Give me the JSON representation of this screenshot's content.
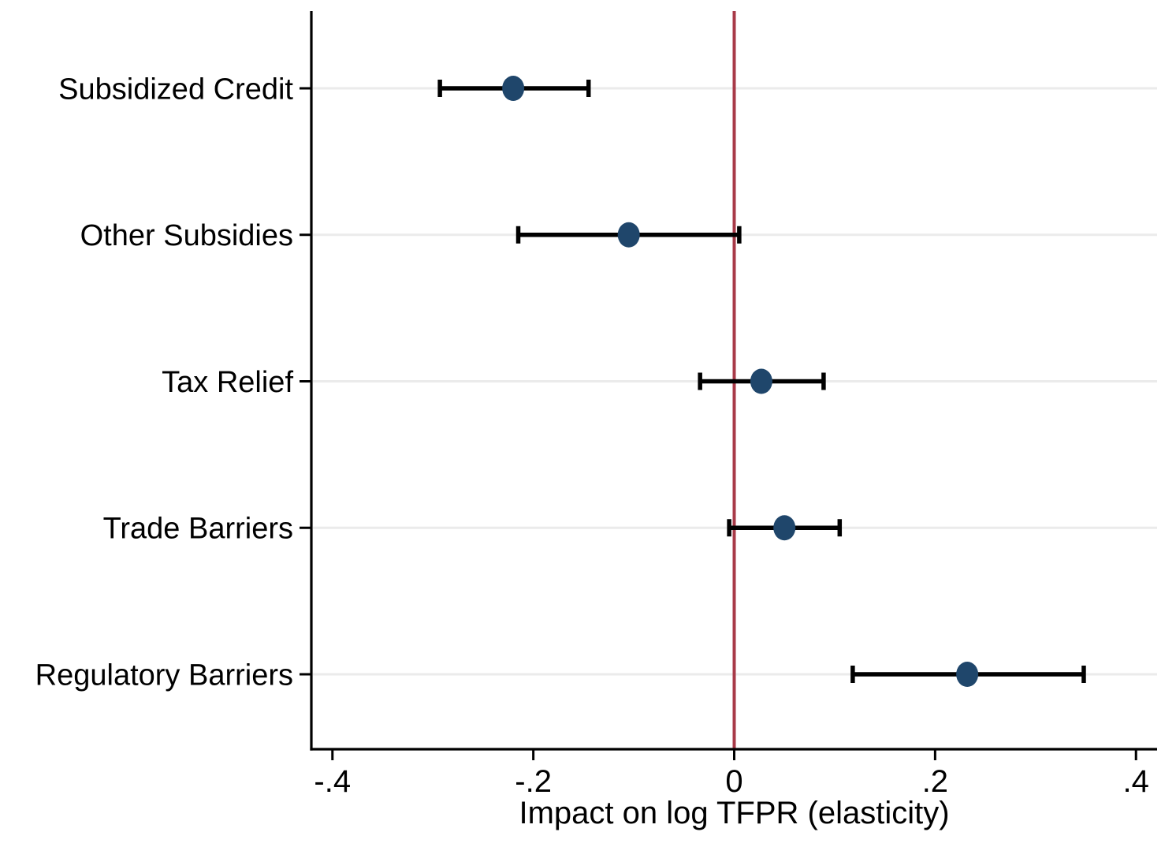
{
  "figure": {
    "background": "#ffffff",
    "kind": "coefficient-plot"
  },
  "chart_data": {
    "type": "scatter",
    "subtype": "dot-whisker-coefficient-plot",
    "title": "",
    "xlabel": "Impact on log TFPR (elasticity)",
    "ylabel": "",
    "categories": [
      "Subsidized Credit",
      "Other Subsidies",
      "Tax Relief",
      "Trade Barriers",
      "Regulatory Barriers"
    ],
    "series": [
      {
        "name": "Impact on log TFPR (elasticity)",
        "estimates": [
          -0.22,
          -0.105,
          0.027,
          0.05,
          0.232
        ],
        "ci_low": [
          -0.293,
          -0.215,
          -0.034,
          -0.005,
          0.118
        ],
        "ci_high": [
          -0.145,
          0.005,
          0.089,
          0.105,
          0.348
        ]
      }
    ],
    "x_ticks": {
      "values": [
        -0.4,
        -0.2,
        0,
        0.2,
        0.4
      ],
      "labels": [
        "-.4",
        "-.2",
        "0",
        ".2",
        ".4"
      ]
    },
    "xlim": [
      -0.421,
      0.421
    ],
    "reference_line_x": 0,
    "grid": "horizontal-light",
    "legend": "none",
    "colors": {
      "marker": "#1f466b",
      "whisker": "#000000",
      "reference_line": "#a83a48",
      "gridline": "#ebebeb",
      "axis": "#000000",
      "text": "#000000"
    }
  }
}
